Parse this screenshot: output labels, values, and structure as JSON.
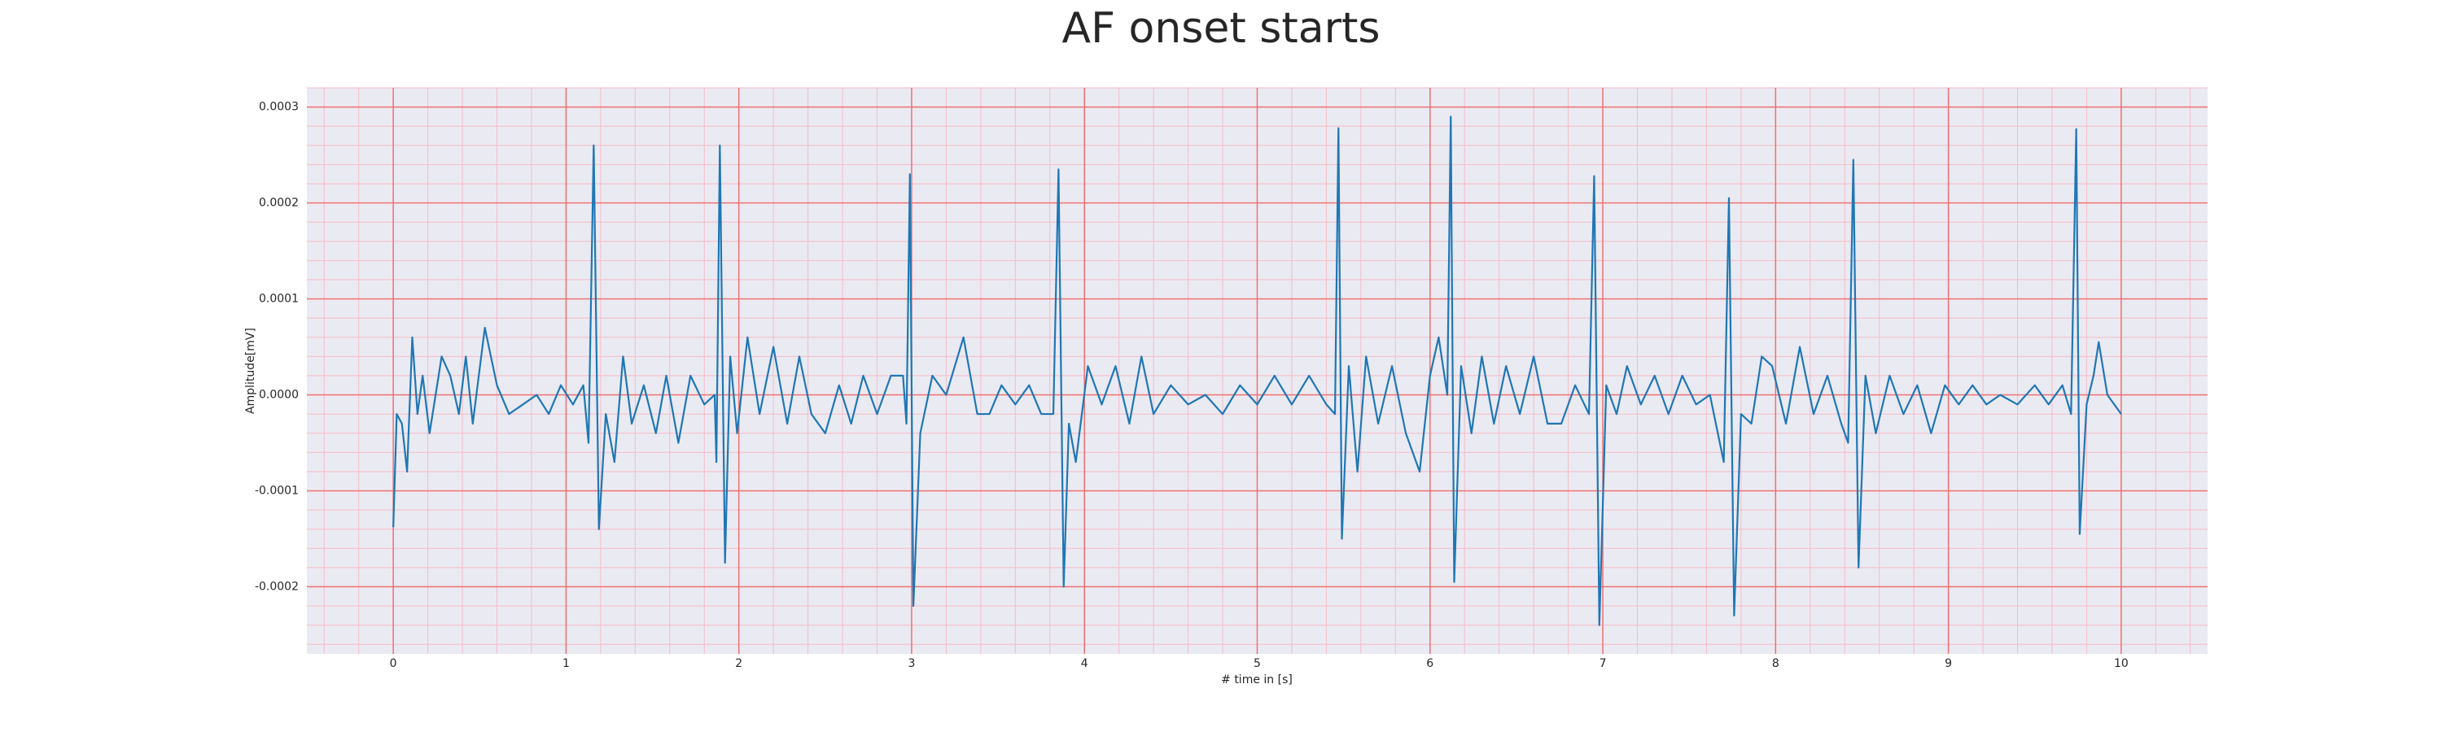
{
  "chart_data": {
    "type": "line",
    "title": "AF onset starts",
    "x_label": "# time in [s]",
    "y_label": "Amplitude[mV]",
    "xlim": [
      -0.5,
      10.5
    ],
    "ylim": [
      -0.00027,
      0.00032
    ],
    "xticks": [
      0,
      1,
      2,
      3,
      4,
      5,
      6,
      7,
      8,
      9,
      10
    ],
    "yticks": [
      -0.0002,
      -0.0001,
      {
        "value": 0,
        "label": "0.0000"
      },
      0.0001,
      0.0002,
      0.0003
    ],
    "xminorticks": [
      -0.4,
      -0.2,
      0.2,
      0.4,
      0.6,
      0.8,
      1.2,
      1.4,
      1.6,
      1.8,
      2.2,
      2.4,
      2.6,
      2.8,
      3.2,
      3.4,
      3.6,
      3.8,
      4.2,
      4.4,
      4.6,
      4.8,
      5.2,
      5.4,
      5.6,
      5.8,
      6.2,
      6.4,
      6.6,
      6.8,
      7.2,
      7.4,
      7.6,
      7.8,
      8.2,
      8.4,
      8.6,
      8.8,
      9.2,
      9.4,
      9.6,
      9.8,
      10.2,
      10.4
    ],
    "yminorticks": [
      -0.00026,
      -0.00024,
      -0.00022,
      -0.00018,
      -0.00016,
      -0.00014,
      -0.00012,
      -8e-05,
      -6e-05,
      -4e-05,
      -2e-05,
      2e-05,
      4e-05,
      6e-05,
      8e-05,
      0.00012,
      0.00014,
      0.00016,
      0.00018,
      0.00022,
      0.00024,
      0.00026,
      0.00028,
      0.00032
    ],
    "grid": true,
    "major_grid_color": "#f07070",
    "minor_grid_color": "#f5bcc8",
    "background": "#eaeaf2",
    "series": [
      {
        "color": "#1f77b4",
        "x": [
          0,
          0.02,
          0.05,
          0.08,
          0.11,
          0.14,
          0.17,
          0.21,
          0.28,
          0.33,
          0.38,
          0.42,
          0.46,
          0.53,
          0.6,
          0.67,
          0.75,
          0.83,
          0.9,
          0.97,
          1.04,
          1.1,
          1.13,
          1.16,
          1.19,
          1.23,
          1.28,
          1.33,
          1.38,
          1.45,
          1.52,
          1.58,
          1.65,
          1.72,
          1.8,
          1.86,
          1.87,
          1.89,
          1.92,
          1.95,
          1.99,
          2.05,
          2.12,
          2.2,
          2.28,
          2.35,
          2.42,
          2.5,
          2.58,
          2.65,
          2.72,
          2.8,
          2.88,
          2.95,
          2.97,
          2.99,
          3.01,
          3.05,
          3.12,
          3.2,
          3.3,
          3.38,
          3.45,
          3.52,
          3.6,
          3.68,
          3.75,
          3.82,
          3.85,
          3.88,
          3.91,
          3.95,
          4.02,
          4.1,
          4.18,
          4.26,
          4.33,
          4.4,
          4.5,
          4.6,
          4.7,
          4.8,
          4.9,
          5.0,
          5.1,
          5.2,
          5.3,
          5.4,
          5.45,
          5.47,
          5.49,
          5.53,
          5.58,
          5.63,
          5.7,
          5.78,
          5.86,
          5.94,
          6.0,
          6.05,
          6.1,
          6.12,
          6.14,
          6.18,
          6.24,
          6.3,
          6.37,
          6.44,
          6.52,
          6.6,
          6.68,
          6.76,
          6.84,
          6.92,
          6.95,
          6.98,
          7.02,
          7.08,
          7.14,
          7.22,
          7.3,
          7.38,
          7.46,
          7.54,
          7.62,
          7.7,
          7.73,
          7.76,
          7.8,
          7.86,
          7.92,
          7.98,
          8.06,
          8.14,
          8.22,
          8.3,
          8.38,
          8.42,
          8.45,
          8.48,
          8.52,
          8.58,
          8.66,
          8.74,
          8.82,
          8.9,
          8.98,
          9.06,
          9.14,
          9.22,
          9.3,
          9.4,
          9.5,
          9.58,
          9.66,
          9.71,
          9.74,
          9.76,
          9.8,
          9.84,
          9.87,
          9.92,
          9.96,
          10.0
        ],
        "values": [
          -0.000138,
          -2e-05,
          -3e-05,
          -8e-05,
          6e-05,
          -2e-05,
          2e-05,
          -4e-05,
          4e-05,
          2e-05,
          -2e-05,
          4e-05,
          -3e-05,
          7e-05,
          1e-05,
          -2e-05,
          -1e-05,
          0,
          -2e-05,
          1e-05,
          -1e-05,
          1e-05,
          -5e-05,
          0.00026,
          -0.00014,
          -2e-05,
          -7e-05,
          4e-05,
          -3e-05,
          1e-05,
          -4e-05,
          2e-05,
          -5e-05,
          2e-05,
          -1e-05,
          0,
          -7e-05,
          0.00026,
          -0.000175,
          4e-05,
          -4e-05,
          6e-05,
          -2e-05,
          5e-05,
          -3e-05,
          4e-05,
          -2e-05,
          -4e-05,
          1e-05,
          -3e-05,
          2e-05,
          -2e-05,
          2e-05,
          2e-05,
          -3e-05,
          0.00023,
          -0.00022,
          -4e-05,
          2e-05,
          0,
          6e-05,
          -2e-05,
          -2e-05,
          1e-05,
          -1e-05,
          1e-05,
          -2e-05,
          -2e-05,
          0.000235,
          -0.0002,
          -3e-05,
          -7e-05,
          3e-05,
          -1e-05,
          3e-05,
          -3e-05,
          4e-05,
          -2e-05,
          1e-05,
          -1e-05,
          0,
          -2e-05,
          1e-05,
          -1e-05,
          2e-05,
          -1e-05,
          2e-05,
          -1e-05,
          -2e-05,
          0.000278,
          -0.00015,
          3e-05,
          -8e-05,
          4e-05,
          -3e-05,
          3e-05,
          -4e-05,
          -8e-05,
          2e-05,
          6e-05,
          0,
          0.00029,
          -0.000195,
          3e-05,
          -4e-05,
          4e-05,
          -3e-05,
          3e-05,
          -2e-05,
          4e-05,
          -3e-05,
          -3e-05,
          1e-05,
          -2e-05,
          0.000228,
          -0.00024,
          1e-05,
          -2e-05,
          3e-05,
          -1e-05,
          2e-05,
          -2e-05,
          2e-05,
          -1e-05,
          0,
          -7e-05,
          0.000205,
          -0.00023,
          -2e-05,
          -3e-05,
          4e-05,
          3e-05,
          -3e-05,
          5e-05,
          -2e-05,
          2e-05,
          -3e-05,
          -5e-05,
          0.000245,
          -0.00018,
          2e-05,
          -4e-05,
          2e-05,
          -2e-05,
          1e-05,
          -4e-05,
          1e-05,
          -1e-05,
          1e-05,
          -1e-05,
          0,
          -1e-05,
          1e-05,
          -1e-05,
          1e-05,
          -2e-05,
          0.000277,
          -0.000145,
          -1e-05,
          2e-05,
          5.5e-05,
          0,
          -1e-05,
          -2e-05
        ]
      }
    ]
  }
}
